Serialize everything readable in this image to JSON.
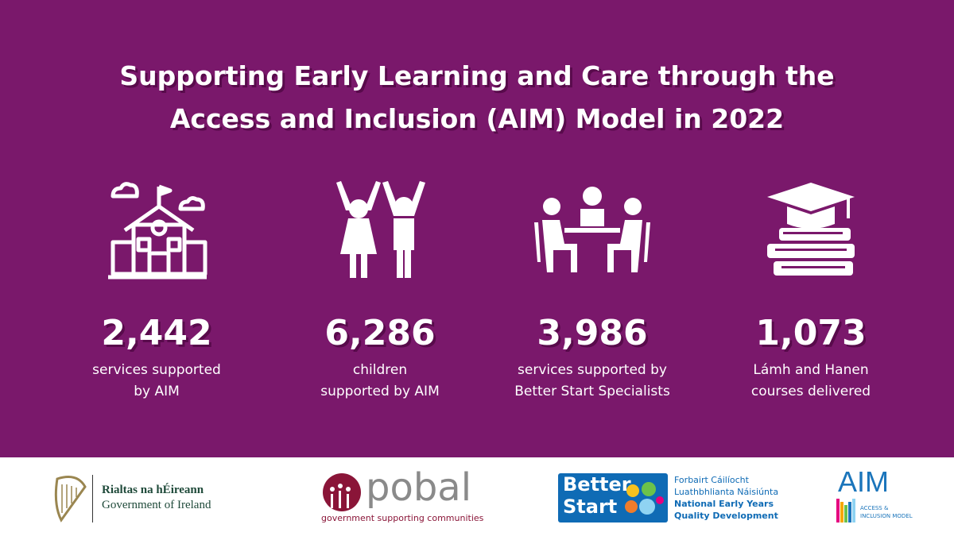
{
  "title_lines": [
    "Supporting Early Learning and Care through the",
    "Access and Inclusion (AIM) Model in 2022"
  ],
  "stats": [
    {
      "value": "2,442",
      "description_lines": [
        "services supported",
        "by AIM"
      ]
    },
    {
      "value": "6,286",
      "description_lines": [
        "children",
        "supported by AIM"
      ]
    },
    {
      "value": "3,986",
      "description_lines": [
        "services supported by",
        "Better Start Specialists"
      ]
    },
    {
      "value": "1,073",
      "description_lines": [
        "Lámh and Hanen",
        "courses delivered"
      ]
    }
  ],
  "footer": {
    "government": [
      "Rialtas na hÉireann",
      "Government of Ireland"
    ],
    "pobal": {
      "name": "pobal",
      "tagline": "government supporting communities"
    },
    "better_start": {
      "name_lines": [
        "Better",
        "Start"
      ],
      "text_lines": [
        "Forbairt Cáilíocht",
        "Luathbhlianta Náisiúnta",
        "National Early Years",
        "Quality Development"
      ]
    },
    "aim": {
      "name": "AIM",
      "tagline_lines": [
        "ACCESS &",
        "INCLUSION MODEL"
      ]
    }
  }
}
